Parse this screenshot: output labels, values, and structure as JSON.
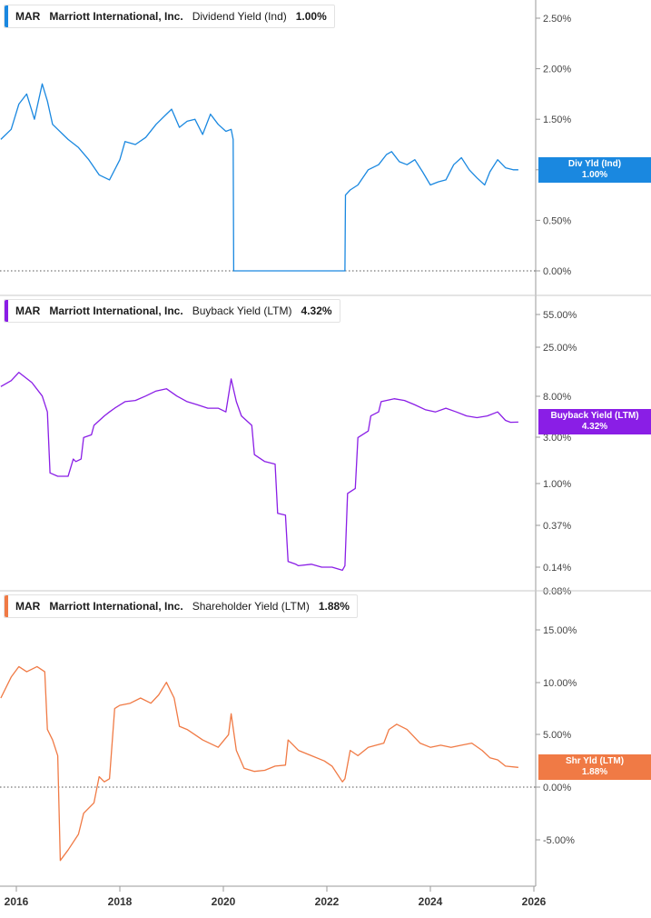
{
  "panels": [
    {
      "ticker": "MAR",
      "company": "Marriott International, Inc.",
      "metric": "Dividend Yield (Ind)",
      "current_value": "1.00%",
      "tag_label": "Div Yld (Ind)",
      "tag_value": "1.00%",
      "color": "#1a88e0",
      "y_ticks": [
        "2.50%",
        "2.00%",
        "1.50%",
        "1.00%",
        "0.50%",
        "0.00%"
      ]
    },
    {
      "ticker": "MAR",
      "company": "Marriott International, Inc.",
      "metric": "Buyback Yield (LTM)",
      "current_value": "4.32%",
      "tag_label": "Buyback Yield (LTM)",
      "tag_value": "4.32%",
      "color": "#8a1ee6",
      "y_ticks": [
        "55.00%",
        "25.00%",
        "8.00%",
        "3.00%",
        "1.00%",
        "0.37%",
        "0.14%",
        "0.08%"
      ]
    },
    {
      "ticker": "MAR",
      "company": "Marriott International, Inc.",
      "metric": "Shareholder Yield (LTM)",
      "current_value": "1.88%",
      "tag_label": "Shr Yld (LTM)",
      "tag_value": "1.88%",
      "color": "#f07a45",
      "y_ticks": [
        "15.00%",
        "10.00%",
        "5.00%",
        "0.00%",
        "-5.00%"
      ]
    }
  ],
  "x_axis": {
    "ticks": [
      "2016",
      "2018",
      "2020",
      "2022",
      "2024",
      "2026"
    ]
  },
  "chart_data": [
    {
      "type": "line",
      "title": "MAR Marriott International, Inc. Dividend Yield (Ind) 1.00%",
      "xlabel": "",
      "ylabel": "",
      "xlim": [
        2016.0,
        2026.0
      ],
      "ylim": [
        0,
        2.7
      ],
      "scale": "linear",
      "series": [
        {
          "name": "Dividend Yield (Ind)",
          "x": [
            2015.7,
            2015.9,
            2016.05,
            2016.2,
            2016.35,
            2016.5,
            2016.6,
            2016.7,
            2016.8,
            2016.9,
            2017.0,
            2017.2,
            2017.4,
            2017.6,
            2017.8,
            2018.0,
            2018.1,
            2018.3,
            2018.5,
            2018.7,
            2018.9,
            2019.0,
            2019.15,
            2019.3,
            2019.45,
            2019.6,
            2019.75,
            2019.9,
            2020.05,
            2020.15,
            2020.19,
            2020.2,
            2022.35,
            2022.36,
            2022.45,
            2022.6,
            2022.8,
            2023.0,
            2023.15,
            2023.25,
            2023.4,
            2023.55,
            2023.7,
            2023.85,
            2024.0,
            2024.15,
            2024.3,
            2024.45,
            2024.6,
            2024.75,
            2024.9,
            2025.05,
            2025.15,
            2025.3,
            2025.45,
            2025.6,
            2025.7
          ],
          "values": [
            1.3,
            1.4,
            1.65,
            1.75,
            1.5,
            1.85,
            1.68,
            1.45,
            1.4,
            1.35,
            1.3,
            1.22,
            1.1,
            0.95,
            0.9,
            1.1,
            1.28,
            1.25,
            1.32,
            1.45,
            1.55,
            1.6,
            1.42,
            1.48,
            1.5,
            1.35,
            1.55,
            1.45,
            1.38,
            1.4,
            1.3,
            0.0,
            0.0,
            0.75,
            0.8,
            0.85,
            1.0,
            1.05,
            1.15,
            1.18,
            1.08,
            1.05,
            1.1,
            0.98,
            0.85,
            0.88,
            0.9,
            1.05,
            1.12,
            1.0,
            0.92,
            0.85,
            0.98,
            1.1,
            1.02,
            1.0,
            1.0
          ]
        }
      ]
    },
    {
      "type": "line",
      "title": "MAR Marriott International, Inc. Buyback Yield (LTM) 4.32%",
      "xlabel": "",
      "ylabel": "",
      "xlim": [
        2016.0,
        2026.0
      ],
      "ylim": [
        0.08,
        55
      ],
      "scale": "log",
      "series": [
        {
          "name": "Buyback Yield (LTM)",
          "x": [
            2015.7,
            2015.9,
            2016.05,
            2016.3,
            2016.5,
            2016.6,
            2016.65,
            2016.8,
            2017.0,
            2017.1,
            2017.15,
            2017.25,
            2017.3,
            2017.45,
            2017.5,
            2017.7,
            2017.8,
            2017.9,
            2018.1,
            2018.3,
            2018.5,
            2018.7,
            2018.9,
            2019.1,
            2019.3,
            2019.5,
            2019.7,
            2019.9,
            2020.05,
            2020.15,
            2020.25,
            2020.35,
            2020.55,
            2020.6,
            2020.8,
            2021.0,
            2021.05,
            2021.2,
            2021.25,
            2021.4,
            2021.45,
            2021.7,
            2021.9,
            2022.1,
            2022.3,
            2022.35,
            2022.4,
            2022.55,
            2022.6,
            2022.8,
            2022.85,
            2023.0,
            2023.05,
            2023.3,
            2023.5,
            2023.7,
            2023.9,
            2024.1,
            2024.3,
            2024.5,
            2024.7,
            2024.9,
            2025.1,
            2025.3,
            2025.45,
            2025.55,
            2025.7
          ],
          "values": [
            10.0,
            11.5,
            14.0,
            11.0,
            8.0,
            5.5,
            1.3,
            1.2,
            1.2,
            1.8,
            1.7,
            1.8,
            3.0,
            3.2,
            4.0,
            5.0,
            5.5,
            6.0,
            7.0,
            7.2,
            8.0,
            9.0,
            9.5,
            8.0,
            7.0,
            6.5,
            6.0,
            6.0,
            5.5,
            12.0,
            7.0,
            5.0,
            4.0,
            2.0,
            1.7,
            1.6,
            0.5,
            0.48,
            0.16,
            0.15,
            0.145,
            0.15,
            0.14,
            0.14,
            0.13,
            0.145,
            0.8,
            0.9,
            3.0,
            3.5,
            5.0,
            5.5,
            7.0,
            7.5,
            7.2,
            6.5,
            5.8,
            5.5,
            6.0,
            5.5,
            5.0,
            4.8,
            5.0,
            5.5,
            4.5,
            4.3,
            4.32
          ]
        }
      ]
    },
    {
      "type": "line",
      "title": "MAR Marriott International, Inc. Shareholder Yield (LTM) 1.88%",
      "xlabel": "",
      "ylabel": "",
      "xlim": [
        2016.0,
        2026.0
      ],
      "ylim": [
        -8,
        17
      ],
      "scale": "linear",
      "series": [
        {
          "name": "Shareholder Yield (LTM)",
          "x": [
            2015.7,
            2015.9,
            2016.05,
            2016.2,
            2016.4,
            2016.55,
            2016.6,
            2016.7,
            2016.8,
            2016.85,
            2017.0,
            2017.2,
            2017.3,
            2017.5,
            2017.6,
            2017.7,
            2017.8,
            2017.9,
            2018.0,
            2018.2,
            2018.4,
            2018.6,
            2018.75,
            2018.9,
            2019.05,
            2019.15,
            2019.3,
            2019.6,
            2019.9,
            2020.1,
            2020.15,
            2020.25,
            2020.4,
            2020.6,
            2020.8,
            2021.0,
            2021.2,
            2021.25,
            2021.45,
            2021.7,
            2021.95,
            2022.1,
            2022.3,
            2022.35,
            2022.45,
            2022.6,
            2022.8,
            2022.95,
            2023.1,
            2023.2,
            2023.35,
            2023.55,
            2023.8,
            2024.0,
            2024.2,
            2024.4,
            2024.6,
            2024.8,
            2025.0,
            2025.15,
            2025.3,
            2025.45,
            2025.7
          ],
          "values": [
            8.5,
            10.5,
            11.5,
            11.0,
            11.5,
            11.0,
            5.5,
            4.5,
            3.0,
            -7.0,
            -6.0,
            -4.5,
            -2.5,
            -1.5,
            1.0,
            0.5,
            0.8,
            7.5,
            7.8,
            8.0,
            8.5,
            8.0,
            8.8,
            10.0,
            8.5,
            5.8,
            5.5,
            4.5,
            3.8,
            5.0,
            7.0,
            3.5,
            1.8,
            1.5,
            1.6,
            2.0,
            2.1,
            4.5,
            3.5,
            3.0,
            2.5,
            2.0,
            0.5,
            0.8,
            3.5,
            3.0,
            3.8,
            4.0,
            4.2,
            5.5,
            6.0,
            5.5,
            4.2,
            3.8,
            4.0,
            3.8,
            4.0,
            4.2,
            3.5,
            2.8,
            2.6,
            2.0,
            1.88
          ]
        }
      ]
    }
  ]
}
